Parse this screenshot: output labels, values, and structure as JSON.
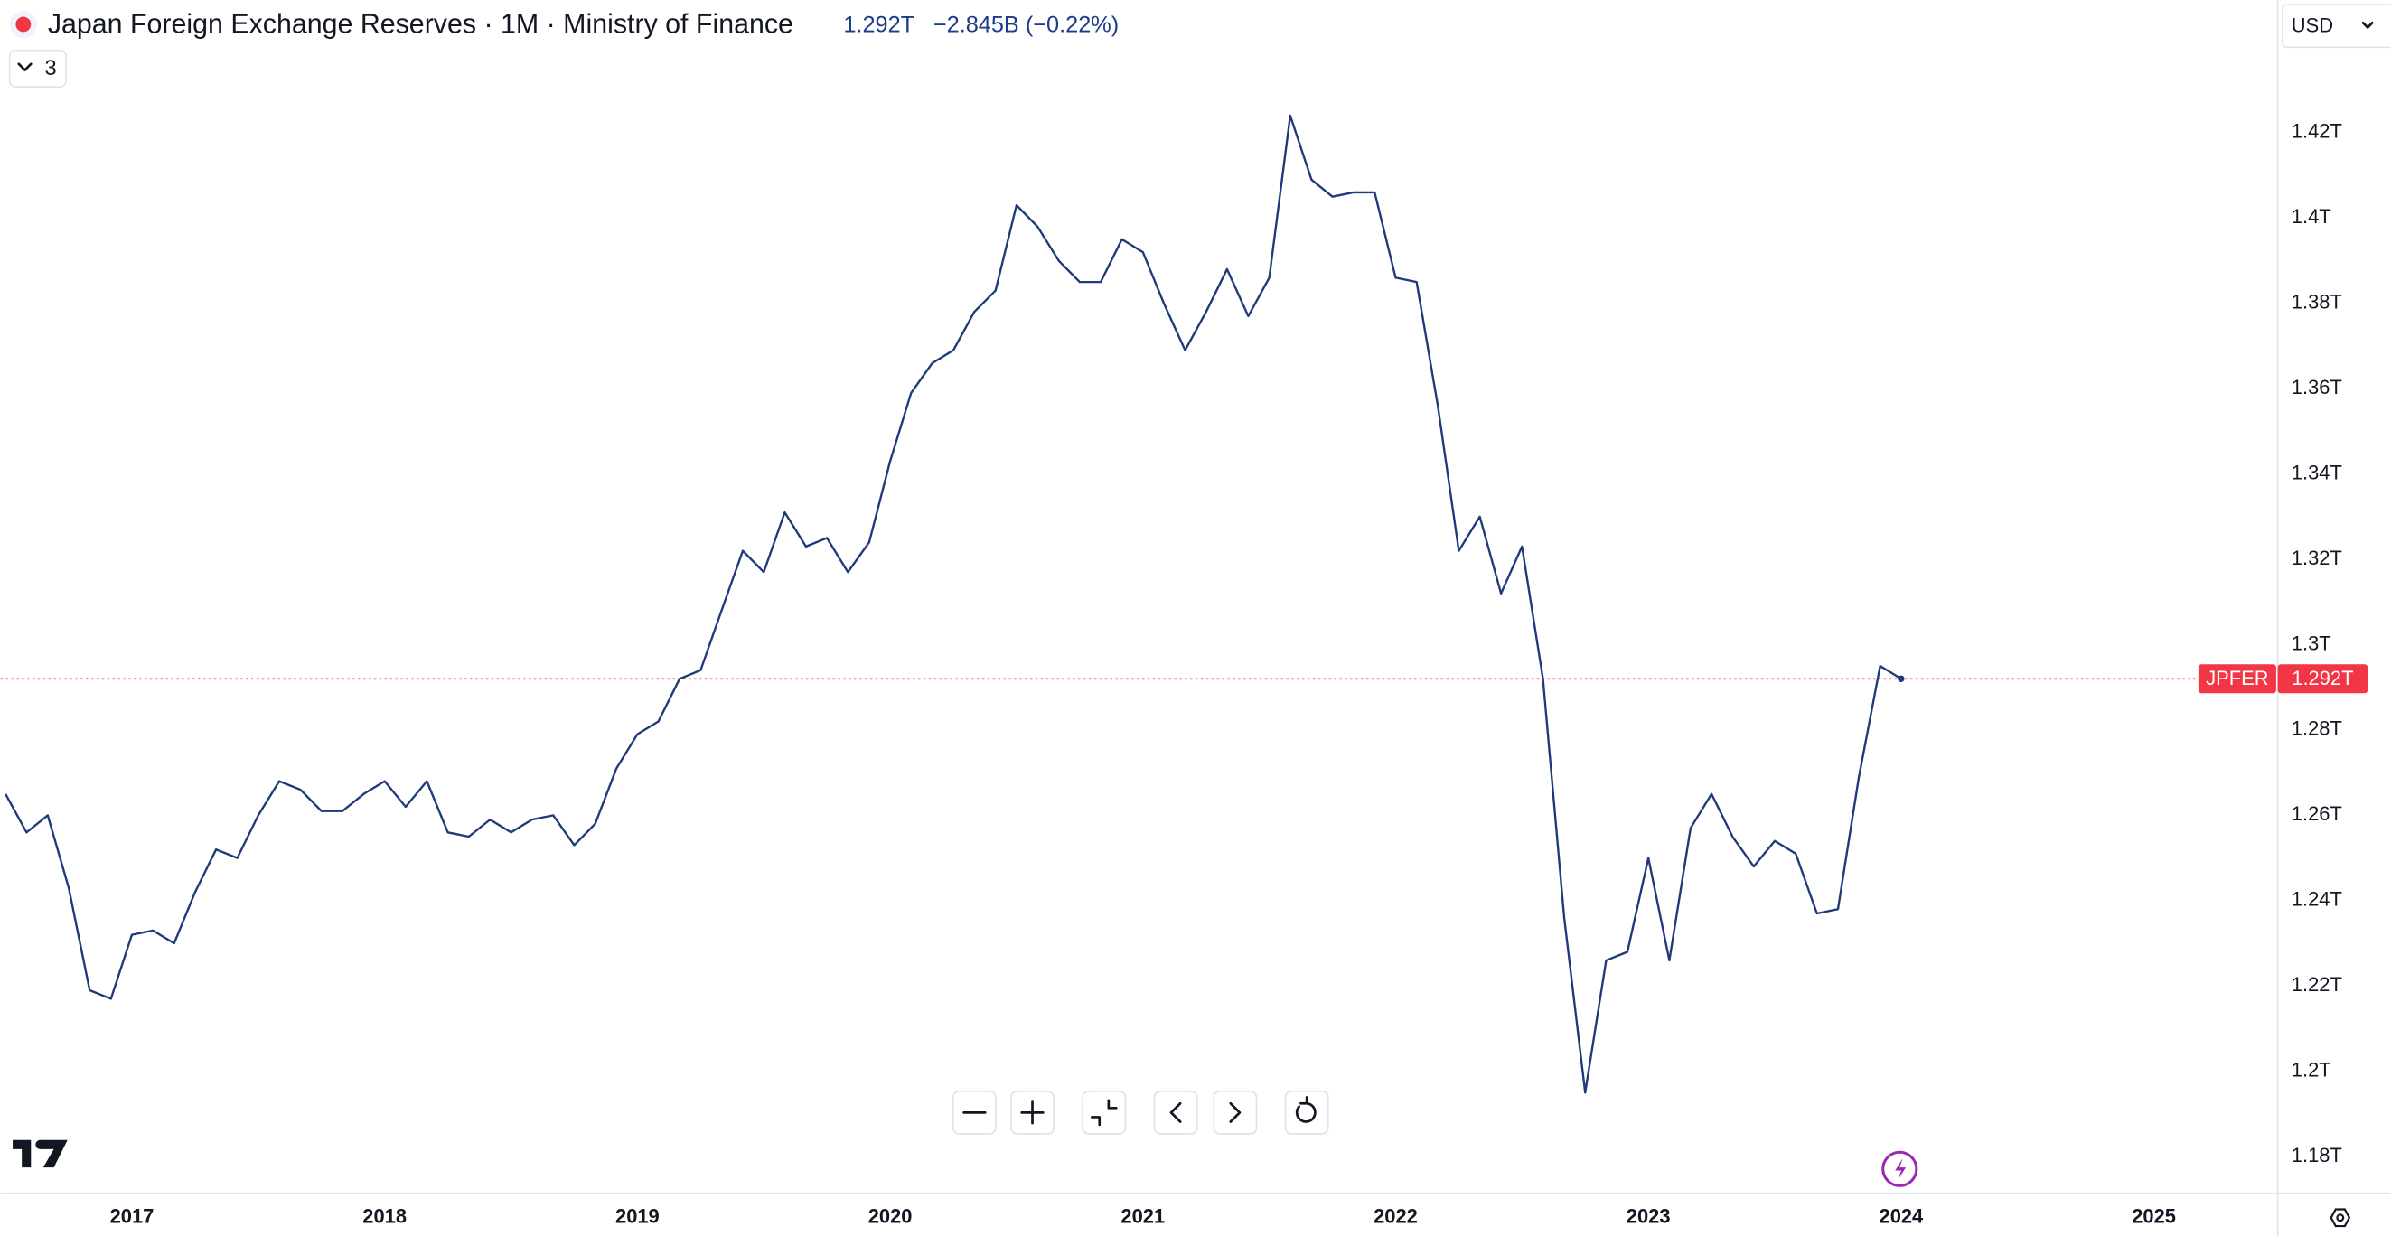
{
  "header": {
    "title": "Japan Foreign Exchange Reserves · 1M · Ministry of Finance",
    "value": "1.292T",
    "change": "−2.845B (−0.22%)",
    "indicators": "3",
    "currency": "USD"
  },
  "chart_data": {
    "type": "line",
    "x": [
      2016.5,
      2016.583,
      2016.667,
      2016.75,
      2016.833,
      2016.917,
      2017,
      2017.083,
      2017.167,
      2017.25,
      2017.333,
      2017.417,
      2017.5,
      2017.583,
      2017.667,
      2017.75,
      2017.833,
      2017.917,
      2018,
      2018.083,
      2018.167,
      2018.25,
      2018.333,
      2018.417,
      2018.5,
      2018.583,
      2018.667,
      2018.75,
      2018.833,
      2018.917,
      2019,
      2019.083,
      2019.167,
      2019.25,
      2019.333,
      2019.417,
      2019.5,
      2019.583,
      2019.667,
      2019.75,
      2019.833,
      2019.917,
      2020,
      2020.083,
      2020.167,
      2020.25,
      2020.333,
      2020.417,
      2020.5,
      2020.583,
      2020.667,
      2020.75,
      2020.833,
      2020.917,
      2021,
      2021.083,
      2021.167,
      2021.25,
      2021.333,
      2021.417,
      2021.5,
      2021.583,
      2021.667,
      2021.75,
      2021.833,
      2021.917,
      2022,
      2022.083,
      2022.167,
      2022.25,
      2022.333,
      2022.417,
      2022.5,
      2022.583,
      2022.667,
      2022.75,
      2022.833,
      2022.917,
      2023,
      2023.083,
      2023.167,
      2023.25,
      2023.333,
      2023.417,
      2023.5,
      2023.583,
      2023.667,
      2023.75,
      2023.833,
      2023.917,
      2024
    ],
    "series": [
      {
        "name": "JPFER",
        "color": "#1f3a7a",
        "values": [
          1.265,
          1.256,
          1.26,
          1.243,
          1.219,
          1.217,
          1.232,
          1.233,
          1.23,
          1.242,
          1.252,
          1.25,
          1.26,
          1.268,
          1.266,
          1.261,
          1.261,
          1.265,
          1.268,
          1.262,
          1.268,
          1.256,
          1.255,
          1.259,
          1.256,
          1.259,
          1.26,
          1.253,
          1.258,
          1.271,
          1.279,
          1.282,
          1.292,
          1.294,
          1.308,
          1.322,
          1.317,
          1.331,
          1.323,
          1.325,
          1.317,
          1.324,
          1.343,
          1.359,
          1.366,
          1.369,
          1.378,
          1.383,
          1.403,
          1.398,
          1.39,
          1.385,
          1.385,
          1.395,
          1.392,
          1.38,
          1.369,
          1.378,
          1.388,
          1.377,
          1.386,
          1.424,
          1.409,
          1.405,
          1.406,
          1.406,
          1.386,
          1.385,
          1.356,
          1.322,
          1.33,
          1.312,
          1.323,
          1.292,
          1.236,
          1.195,
          1.226,
          1.228,
          1.25,
          1.226,
          1.257,
          1.265,
          1.255,
          1.248,
          1.254,
          1.251,
          1.237,
          1.238,
          1.269,
          1.295,
          1.292
        ]
      }
    ],
    "xlim": [
      2016.48,
      2025.49
    ],
    "xticks": [
      2017,
      2018,
      2019,
      2020,
      2021,
      2022,
      2023,
      2024,
      2025
    ],
    "ylim": [
      1.1714,
      1.4511
    ],
    "yticks": [
      {
        "value": 1.18,
        "label": "1.18T"
      },
      {
        "value": 1.2,
        "label": "1.2T"
      },
      {
        "value": 1.22,
        "label": "1.22T"
      },
      {
        "value": 1.24,
        "label": "1.24T"
      },
      {
        "value": 1.26,
        "label": "1.26T"
      },
      {
        "value": 1.28,
        "label": "1.28T"
      },
      {
        "value": 1.3,
        "label": "1.3T"
      },
      {
        "value": 1.32,
        "label": "1.32T"
      },
      {
        "value": 1.34,
        "label": "1.34T"
      },
      {
        "value": 1.36,
        "label": "1.36T"
      },
      {
        "value": 1.38,
        "label": "1.38T"
      },
      {
        "value": 1.4,
        "label": "1.4T"
      },
      {
        "value": 1.42,
        "label": "1.42T"
      }
    ],
    "grid": false,
    "last_line_color": "#f23645"
  }
}
